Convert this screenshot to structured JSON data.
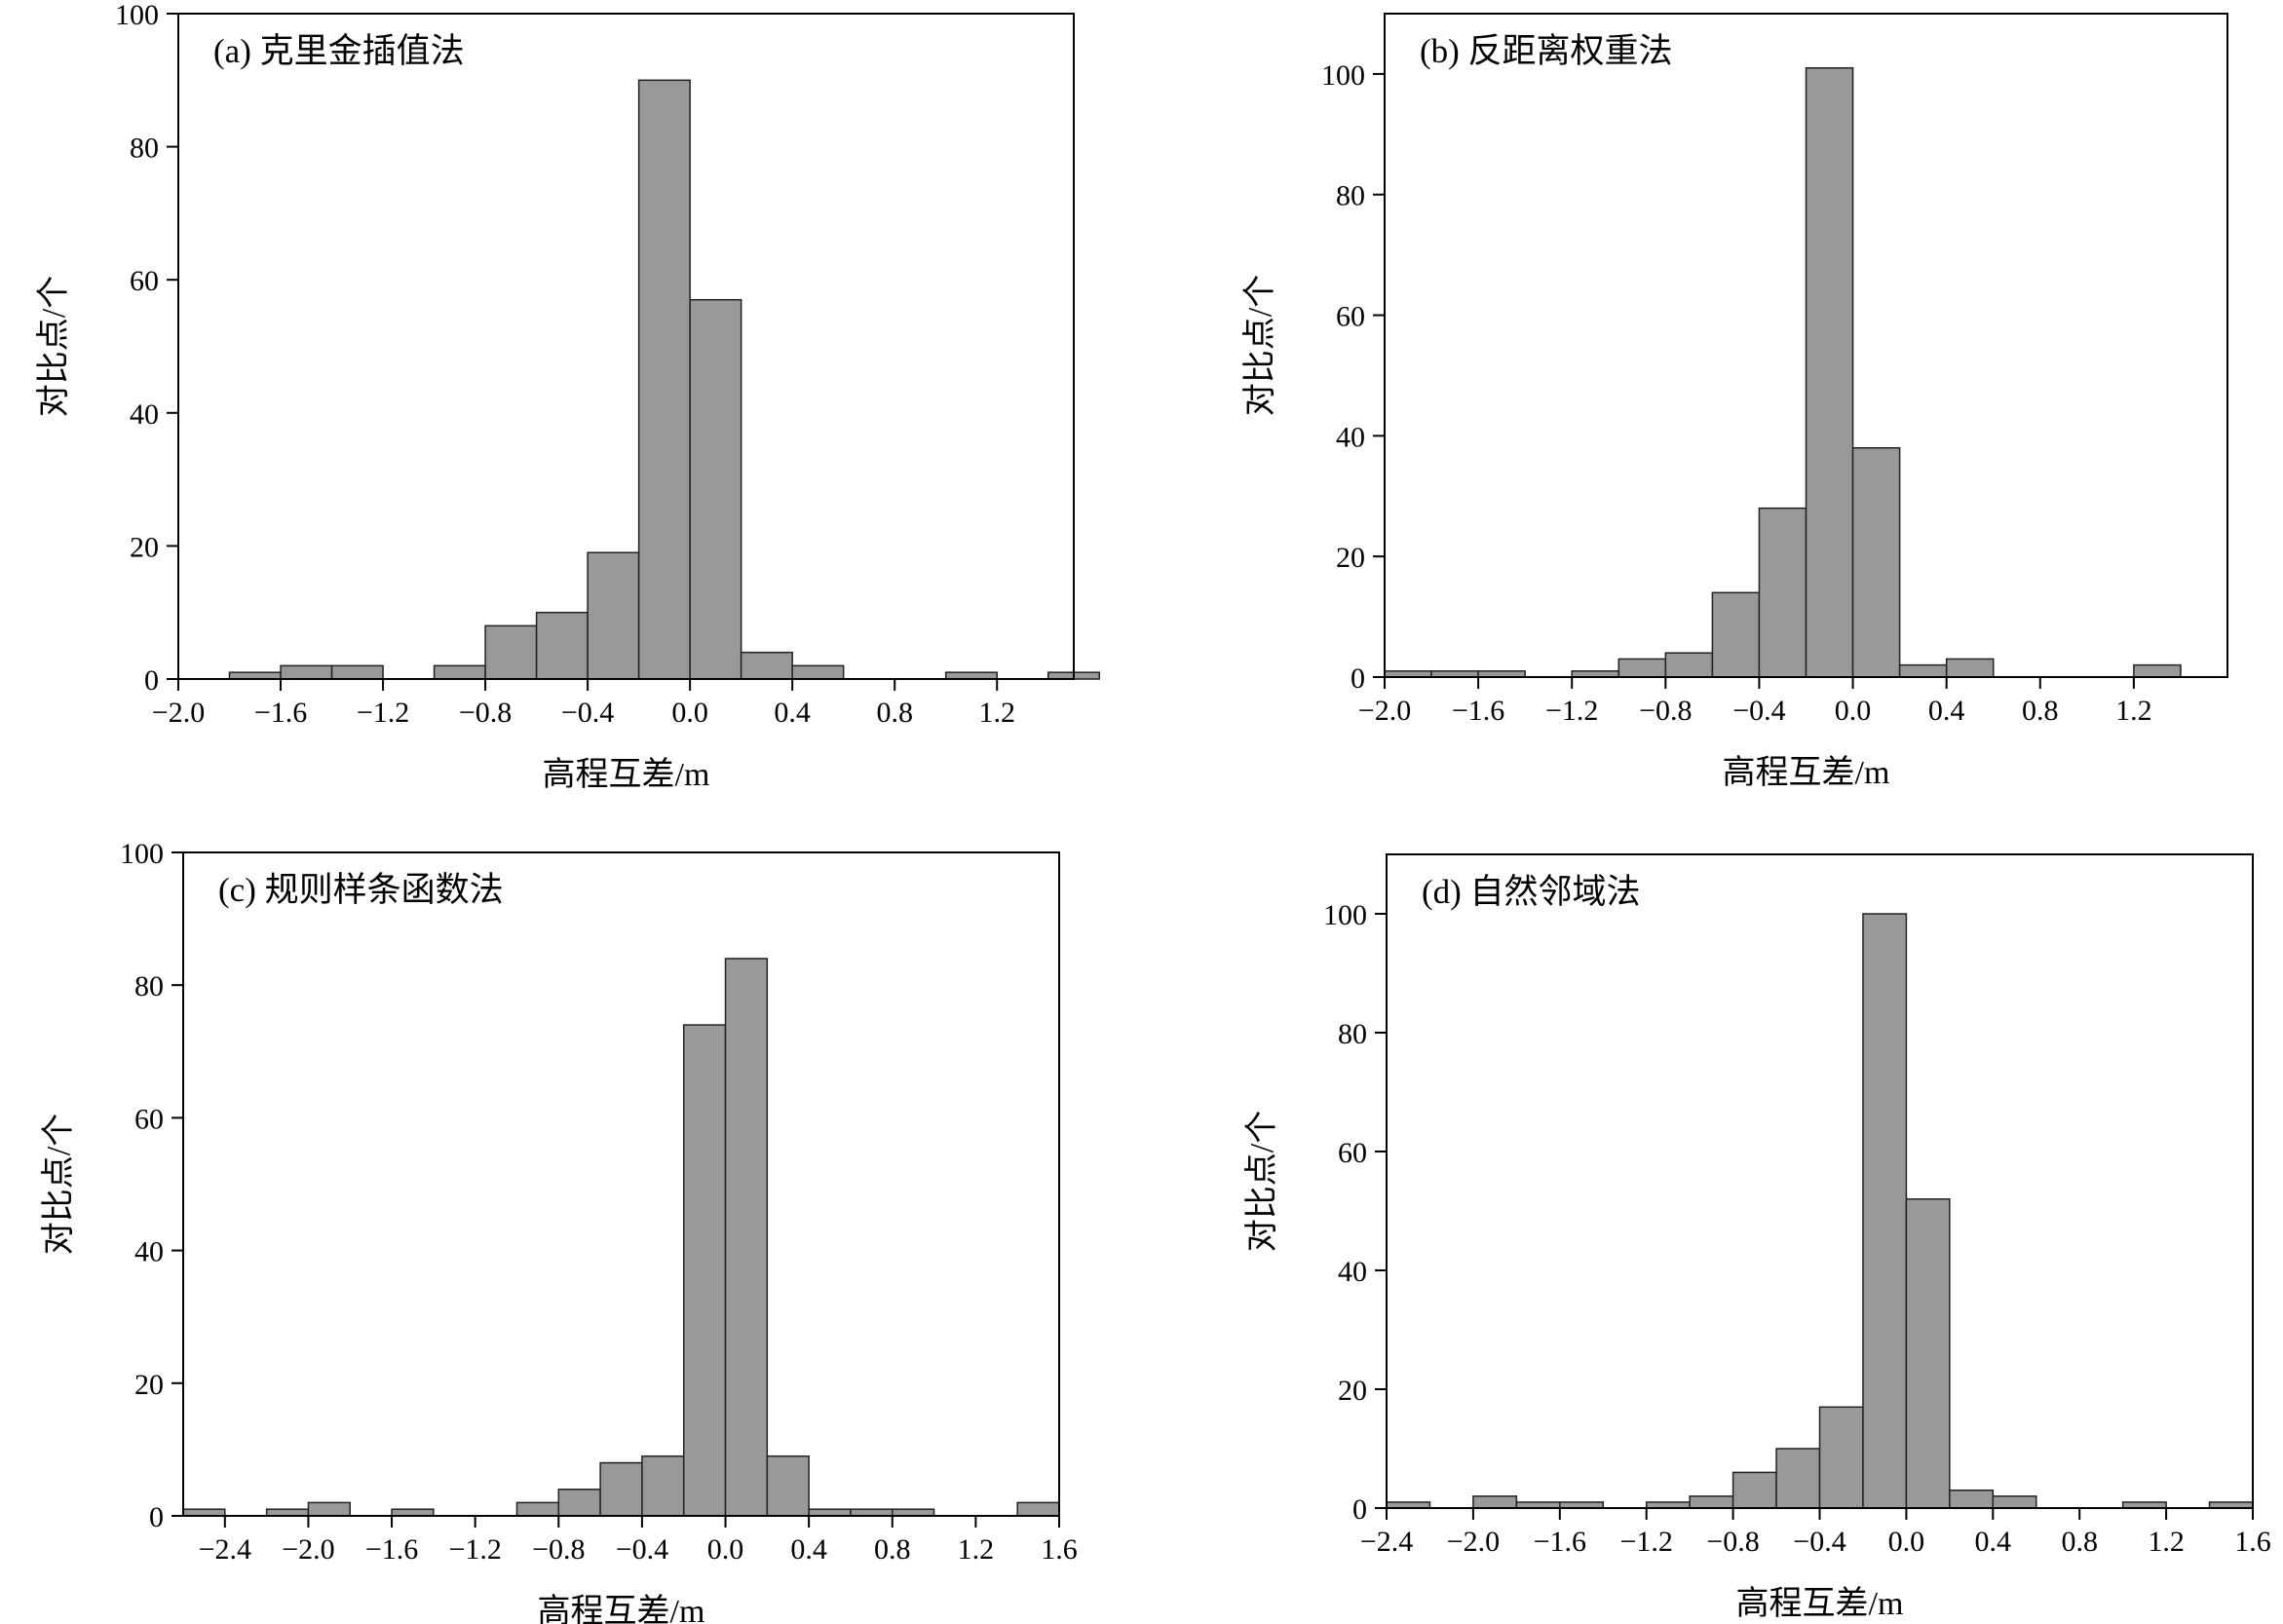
{
  "chart_data": [
    {
      "type": "bar",
      "title": "(a) 克里金插值法",
      "xlabel": "高程互差/m",
      "ylabel": "对比点/个",
      "xlim": [
        -2.0,
        1.5
      ],
      "ylim": [
        0,
        100
      ],
      "xticks": [
        -2.0,
        -1.6,
        -1.2,
        -0.8,
        -0.4,
        0.0,
        0.4,
        0.8,
        1.2
      ],
      "xtick_labels": [
        "−2.0",
        "−1.6",
        "−1.2",
        "−0.8",
        "−0.4",
        "0.0",
        "0.4",
        "0.8",
        "1.2"
      ],
      "yticks": [
        0,
        20,
        40,
        60,
        80,
        100
      ],
      "ytick_labels": [
        "0",
        "20",
        "40",
        "60",
        "80",
        "100"
      ],
      "bins": [
        {
          "x0": -1.8,
          "x1": -1.6,
          "count": 1
        },
        {
          "x0": -1.6,
          "x1": -1.4,
          "count": 2
        },
        {
          "x0": -1.4,
          "x1": -1.2,
          "count": 2
        },
        {
          "x0": -1.0,
          "x1": -0.8,
          "count": 2
        },
        {
          "x0": -0.8,
          "x1": -0.6,
          "count": 8
        },
        {
          "x0": -0.6,
          "x1": -0.4,
          "count": 10
        },
        {
          "x0": -0.4,
          "x1": -0.2,
          "count": 19
        },
        {
          "x0": -0.2,
          "x1": 0.0,
          "count": 90
        },
        {
          "x0": 0.0,
          "x1": 0.2,
          "count": 57
        },
        {
          "x0": 0.2,
          "x1": 0.4,
          "count": 4
        },
        {
          "x0": 0.4,
          "x1": 0.6,
          "count": 2
        },
        {
          "x0": 1.0,
          "x1": 1.2,
          "count": 1
        },
        {
          "x0": 1.4,
          "x1": 1.6,
          "count": 1
        }
      ]
    },
    {
      "type": "bar",
      "title": "(b) 反距离权重法",
      "xlabel": "高程互差/m",
      "ylabel": "对比点/个",
      "xlim": [
        -2.0,
        1.6
      ],
      "ylim": [
        0,
        110
      ],
      "xticks": [
        -2.0,
        -1.6,
        -1.2,
        -0.8,
        -0.4,
        0.0,
        0.4,
        0.8,
        1.2
      ],
      "xtick_labels": [
        "−2.0",
        "−1.6",
        "−1.2",
        "−0.8",
        "−0.4",
        "0.0",
        "0.4",
        "0.8",
        "1.2"
      ],
      "yticks": [
        0,
        20,
        40,
        60,
        80,
        100
      ],
      "ytick_labels": [
        "0",
        "20",
        "40",
        "60",
        "80",
        "100"
      ],
      "bins": [
        {
          "x0": -2.0,
          "x1": -1.8,
          "count": 1
        },
        {
          "x0": -1.8,
          "x1": -1.6,
          "count": 1
        },
        {
          "x0": -1.6,
          "x1": -1.4,
          "count": 1
        },
        {
          "x0": -1.2,
          "x1": -1.0,
          "count": 1
        },
        {
          "x0": -1.0,
          "x1": -0.8,
          "count": 3
        },
        {
          "x0": -0.8,
          "x1": -0.6,
          "count": 4
        },
        {
          "x0": -0.6,
          "x1": -0.4,
          "count": 14
        },
        {
          "x0": -0.4,
          "x1": -0.2,
          "count": 28
        },
        {
          "x0": -0.2,
          "x1": 0.0,
          "count": 101
        },
        {
          "x0": 0.0,
          "x1": 0.2,
          "count": 38
        },
        {
          "x0": 0.2,
          "x1": 0.4,
          "count": 2
        },
        {
          "x0": 0.4,
          "x1": 0.6,
          "count": 3
        },
        {
          "x0": 1.2,
          "x1": 1.4,
          "count": 2
        }
      ]
    },
    {
      "type": "bar",
      "title": "(c) 规则样条函数法",
      "xlabel": "高程互差/m",
      "ylabel": "对比点/个",
      "xlim": [
        -2.6,
        1.6
      ],
      "ylim": [
        0,
        100
      ],
      "xticks": [
        -2.4,
        -2.0,
        -1.6,
        -1.2,
        -0.8,
        -0.4,
        0.0,
        0.4,
        0.8,
        1.2,
        1.6
      ],
      "xtick_labels": [
        "−2.4",
        "−2.0",
        "−1.6",
        "−1.2",
        "−0.8",
        "−0.4",
        "0.0",
        "0.4",
        "0.8",
        "1.2",
        "1.6"
      ],
      "yticks": [
        0,
        20,
        40,
        60,
        80,
        100
      ],
      "ytick_labels": [
        "0",
        "20",
        "40",
        "60",
        "80",
        "100"
      ],
      "bins": [
        {
          "x0": -2.6,
          "x1": -2.4,
          "count": 1
        },
        {
          "x0": -2.2,
          "x1": -2.0,
          "count": 1
        },
        {
          "x0": -2.0,
          "x1": -1.8,
          "count": 2
        },
        {
          "x0": -1.6,
          "x1": -1.4,
          "count": 1
        },
        {
          "x0": -1.0,
          "x1": -0.8,
          "count": 2
        },
        {
          "x0": -0.8,
          "x1": -0.6,
          "count": 4
        },
        {
          "x0": -0.6,
          "x1": -0.4,
          "count": 8
        },
        {
          "x0": -0.4,
          "x1": -0.2,
          "count": 9
        },
        {
          "x0": -0.2,
          "x1": 0.0,
          "count": 74
        },
        {
          "x0": 0.0,
          "x1": 0.2,
          "count": 84
        },
        {
          "x0": 0.2,
          "x1": 0.4,
          "count": 9
        },
        {
          "x0": 0.4,
          "x1": 0.6,
          "count": 1
        },
        {
          "x0": 0.6,
          "x1": 0.8,
          "count": 1
        },
        {
          "x0": 0.8,
          "x1": 1.0,
          "count": 1
        },
        {
          "x0": 1.4,
          "x1": 1.6,
          "count": 2
        }
      ]
    },
    {
      "type": "bar",
      "title": "(d) 自然邻域法",
      "xlabel": "高程互差/m",
      "ylabel": "对比点/个",
      "xlim": [
        -2.4,
        1.6
      ],
      "ylim": [
        0,
        110
      ],
      "xticks": [
        -2.4,
        -2.0,
        -1.6,
        -1.2,
        -0.8,
        -0.4,
        0.0,
        0.4,
        0.8,
        1.2,
        1.6
      ],
      "xtick_labels": [
        "−2.4",
        "−2.0",
        "−1.6",
        "−1.2",
        "−0.8",
        "−0.4",
        "0.0",
        "0.4",
        "0.8",
        "1.2",
        "1.6"
      ],
      "yticks": [
        0,
        20,
        40,
        60,
        80,
        100
      ],
      "ytick_labels": [
        "0",
        "20",
        "40",
        "60",
        "80",
        "100"
      ],
      "bins": [
        {
          "x0": -2.4,
          "x1": -2.2,
          "count": 1
        },
        {
          "x0": -2.0,
          "x1": -1.8,
          "count": 2
        },
        {
          "x0": -1.8,
          "x1": -1.6,
          "count": 1
        },
        {
          "x0": -1.6,
          "x1": -1.4,
          "count": 1
        },
        {
          "x0": -1.2,
          "x1": -1.0,
          "count": 1
        },
        {
          "x0": -1.0,
          "x1": -0.8,
          "count": 2
        },
        {
          "x0": -0.8,
          "x1": -0.6,
          "count": 6
        },
        {
          "x0": -0.6,
          "x1": -0.4,
          "count": 10
        },
        {
          "x0": -0.4,
          "x1": -0.2,
          "count": 17
        },
        {
          "x0": -0.2,
          "x1": 0.0,
          "count": 100
        },
        {
          "x0": 0.0,
          "x1": 0.2,
          "count": 52
        },
        {
          "x0": 0.2,
          "x1": 0.4,
          "count": 3
        },
        {
          "x0": 0.4,
          "x1": 0.6,
          "count": 2
        },
        {
          "x0": 1.0,
          "x1": 1.2,
          "count": 1
        },
        {
          "x0": 1.4,
          "x1": 1.6,
          "count": 1
        }
      ]
    }
  ]
}
